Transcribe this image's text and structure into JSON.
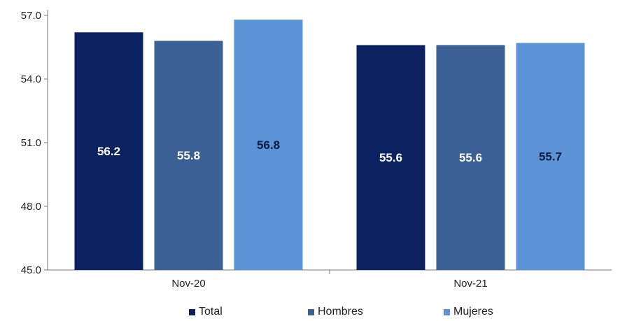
{
  "colors": {
    "total": "#0b2160",
    "hombres": "#3a6095",
    "mujeres": "#5b93d6"
  },
  "chart_data": {
    "type": "bar",
    "categories": [
      "Nov-20",
      "Nov-21"
    ],
    "series": [
      {
        "name": "Total",
        "values": [
          56.2,
          55.6
        ],
        "color": "#0b2160"
      },
      {
        "name": "Hombres",
        "values": [
          55.8,
          55.6
        ],
        "color": "#3a6095"
      },
      {
        "name": "Mujeres",
        "values": [
          56.8,
          55.7
        ],
        "color": "#5b93d6"
      }
    ],
    "data_labels": [
      [
        "56.2",
        "55.6"
      ],
      [
        "55.8",
        "55.6"
      ],
      [
        "56.8",
        "55.7"
      ]
    ],
    "yticks": [
      "45.0",
      "48.0",
      "51.0",
      "54.0",
      "57.0"
    ],
    "ylim": [
      45,
      57
    ],
    "grid": false,
    "legend_position": "bottom"
  }
}
